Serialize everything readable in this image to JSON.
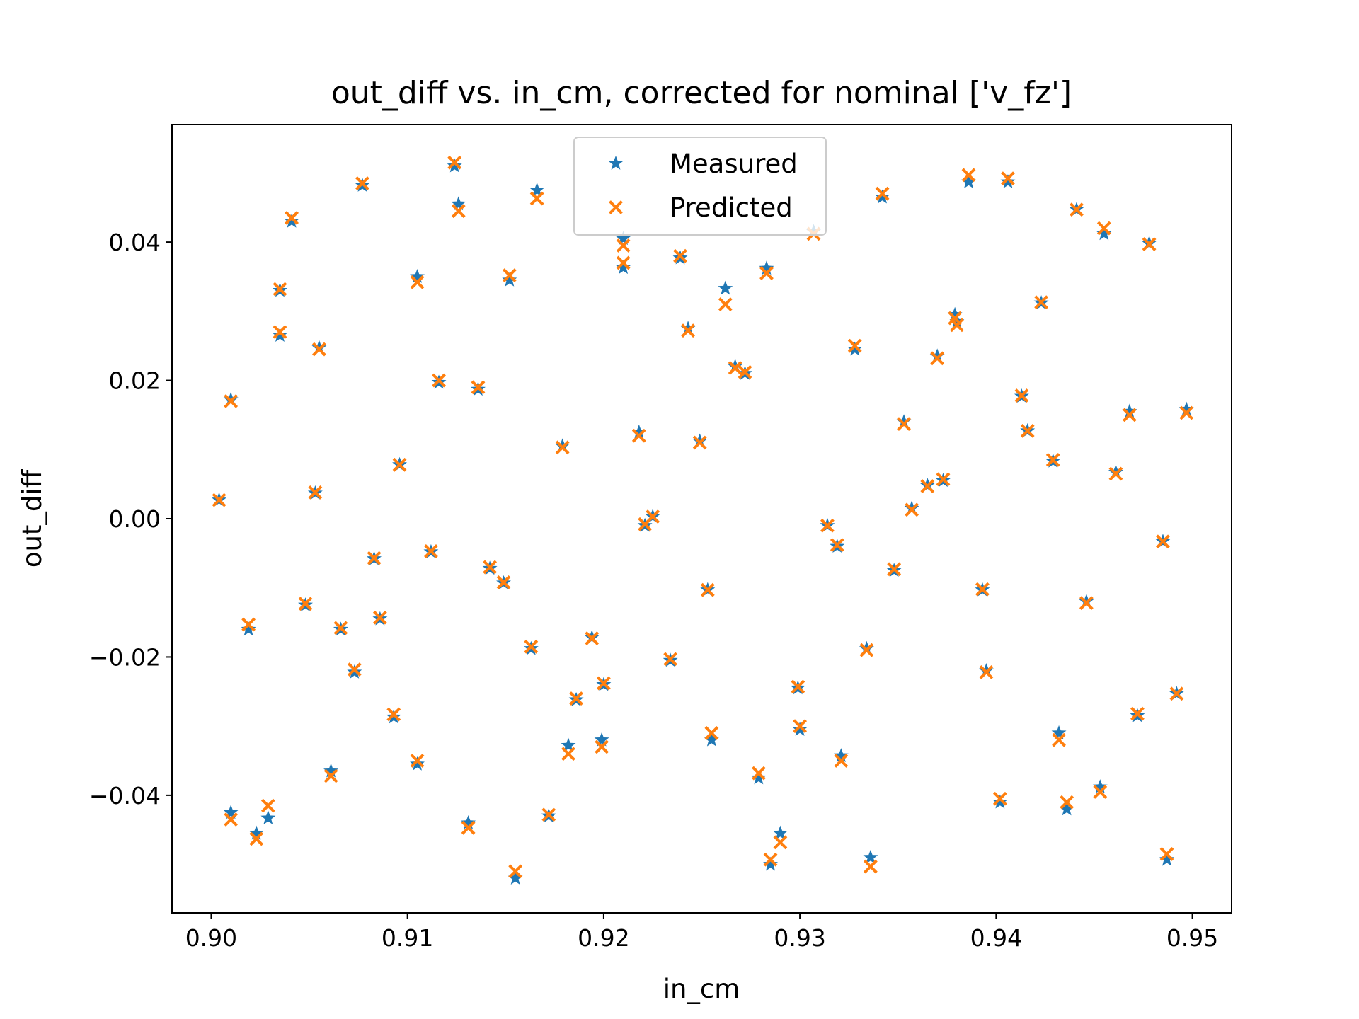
{
  "chart_data": {
    "type": "scatter",
    "title": "out_diff vs. in_cm, corrected for nominal ['v_fz']",
    "xlabel": "in_cm",
    "ylabel": "out_diff",
    "xlim": [
      0.898,
      0.952
    ],
    "ylim": [
      -0.057,
      0.057
    ],
    "xticks": [
      0.9,
      0.91,
      0.92,
      0.93,
      0.94,
      0.95
    ],
    "xtick_labels": [
      "0.90",
      "0.91",
      "0.92",
      "0.93",
      "0.94",
      "0.95"
    ],
    "yticks": [
      -0.04,
      -0.02,
      0.0,
      0.02,
      0.04
    ],
    "ytick_labels": [
      "−0.04",
      "−0.02",
      "0.00",
      "0.02",
      "0.04"
    ],
    "grid": false,
    "legend_position": "top-center",
    "series": [
      {
        "name": "Measured",
        "marker": "star",
        "color": "#1f77b4",
        "points": [
          [
            0.9004,
            0.0027
          ],
          [
            0.901,
            0.0172
          ],
          [
            0.901,
            -0.0425
          ],
          [
            0.9019,
            -0.016
          ],
          [
            0.9023,
            -0.0455
          ],
          [
            0.9029,
            -0.0433
          ],
          [
            0.9035,
            0.033
          ],
          [
            0.9035,
            0.0265
          ],
          [
            0.9041,
            0.043
          ],
          [
            0.9048,
            -0.0125
          ],
          [
            0.9053,
            0.0037
          ],
          [
            0.9055,
            0.0247
          ],
          [
            0.9061,
            -0.0365
          ],
          [
            0.9066,
            -0.016
          ],
          [
            0.9073,
            -0.0222
          ],
          [
            0.9077,
            0.0482
          ],
          [
            0.9083,
            -0.0058
          ],
          [
            0.9086,
            -0.0145
          ],
          [
            0.9093,
            -0.0287
          ],
          [
            0.9096,
            0.0078
          ],
          [
            0.9105,
            0.035
          ],
          [
            0.9105,
            -0.0355
          ],
          [
            0.9112,
            -0.0048
          ],
          [
            0.9116,
            0.0197
          ],
          [
            0.9124,
            0.051
          ],
          [
            0.9126,
            0.0455
          ],
          [
            0.9131,
            -0.044
          ],
          [
            0.9136,
            0.0187
          ],
          [
            0.9142,
            -0.0072
          ],
          [
            0.9149,
            -0.0093
          ],
          [
            0.9152,
            0.0345
          ],
          [
            0.9155,
            -0.052
          ],
          [
            0.9163,
            -0.0188
          ],
          [
            0.9166,
            0.0475
          ],
          [
            0.9172,
            -0.043
          ],
          [
            0.9179,
            0.0105
          ],
          [
            0.9182,
            -0.0328
          ],
          [
            0.9186,
            -0.0262
          ],
          [
            0.9194,
            -0.0172
          ],
          [
            0.9199,
            -0.032
          ],
          [
            0.92,
            -0.024
          ],
          [
            0.921,
            0.0405
          ],
          [
            0.921,
            0.0363
          ],
          [
            0.9218,
            0.0125
          ],
          [
            0.9221,
            -0.001
          ],
          [
            0.9225,
            0.0003
          ],
          [
            0.9234,
            -0.0205
          ],
          [
            0.9239,
            0.0377
          ],
          [
            0.9243,
            0.0275
          ],
          [
            0.9249,
            0.0112
          ],
          [
            0.9253,
            -0.0103
          ],
          [
            0.9255,
            -0.032
          ],
          [
            0.9262,
            0.0333
          ],
          [
            0.9267,
            0.022
          ],
          [
            0.9272,
            0.021
          ],
          [
            0.9279,
            -0.0375
          ],
          [
            0.9283,
            0.0362
          ],
          [
            0.9285,
            -0.05
          ],
          [
            0.929,
            -0.0455
          ],
          [
            0.9299,
            -0.0245
          ],
          [
            0.93,
            -0.0305
          ],
          [
            0.9307,
            0.0415
          ],
          [
            0.9314,
            -0.001
          ],
          [
            0.9319,
            -0.004
          ],
          [
            0.9321,
            -0.0343
          ],
          [
            0.9328,
            0.0245
          ],
          [
            0.9334,
            -0.0188
          ],
          [
            0.9336,
            -0.049
          ],
          [
            0.9342,
            0.0465
          ],
          [
            0.9348,
            -0.0075
          ],
          [
            0.9353,
            0.014
          ],
          [
            0.9357,
            0.0015
          ],
          [
            0.9365,
            0.0048
          ],
          [
            0.937,
            0.0235
          ],
          [
            0.9373,
            0.0055
          ],
          [
            0.9379,
            0.0295
          ],
          [
            0.938,
            0.0285
          ],
          [
            0.9386,
            0.0487
          ],
          [
            0.9393,
            -0.0103
          ],
          [
            0.9395,
            -0.022
          ],
          [
            0.9402,
            -0.041
          ],
          [
            0.9406,
            0.0487
          ],
          [
            0.9413,
            0.0177
          ],
          [
            0.9416,
            0.0127
          ],
          [
            0.9423,
            0.0312
          ],
          [
            0.9429,
            0.0083
          ],
          [
            0.9432,
            -0.031
          ],
          [
            0.9436,
            -0.042
          ],
          [
            0.9441,
            0.0447
          ],
          [
            0.9446,
            -0.012
          ],
          [
            0.9453,
            -0.0388
          ],
          [
            0.9455,
            0.0412
          ],
          [
            0.9461,
            0.0067
          ],
          [
            0.9468,
            0.0155
          ],
          [
            0.9472,
            -0.0285
          ],
          [
            0.9478,
            0.0398
          ],
          [
            0.9485,
            -0.0033
          ],
          [
            0.9487,
            -0.0493
          ],
          [
            0.9492,
            -0.0253
          ],
          [
            0.9497,
            0.0158
          ]
        ]
      },
      {
        "name": "Predicted",
        "marker": "x",
        "color": "#ff7f0e",
        "points": [
          [
            0.9004,
            0.0027
          ],
          [
            0.901,
            0.017
          ],
          [
            0.901,
            -0.0435
          ],
          [
            0.9019,
            -0.0153
          ],
          [
            0.9023,
            -0.0463
          ],
          [
            0.9029,
            -0.0415
          ],
          [
            0.9035,
            0.0332
          ],
          [
            0.9035,
            0.027
          ],
          [
            0.9041,
            0.0435
          ],
          [
            0.9048,
            -0.0123
          ],
          [
            0.9053,
            0.0038
          ],
          [
            0.9055,
            0.0245
          ],
          [
            0.9061,
            -0.0372
          ],
          [
            0.9066,
            -0.0158
          ],
          [
            0.9073,
            -0.0218
          ],
          [
            0.9077,
            0.0485
          ],
          [
            0.9083,
            -0.0057
          ],
          [
            0.9086,
            -0.0143
          ],
          [
            0.9093,
            -0.0283
          ],
          [
            0.9096,
            0.0078
          ],
          [
            0.9105,
            0.0342
          ],
          [
            0.9105,
            -0.035
          ],
          [
            0.9112,
            -0.0047
          ],
          [
            0.9116,
            0.02
          ],
          [
            0.9124,
            0.0515
          ],
          [
            0.9126,
            0.0445
          ],
          [
            0.9131,
            -0.0447
          ],
          [
            0.9136,
            0.019
          ],
          [
            0.9142,
            -0.007
          ],
          [
            0.9149,
            -0.0092
          ],
          [
            0.9152,
            0.0352
          ],
          [
            0.9155,
            -0.051
          ],
          [
            0.9163,
            -0.0185
          ],
          [
            0.9166,
            0.0463
          ],
          [
            0.9172,
            -0.0428
          ],
          [
            0.9179,
            0.0103
          ],
          [
            0.9182,
            -0.034
          ],
          [
            0.9186,
            -0.026
          ],
          [
            0.9194,
            -0.0173
          ],
          [
            0.9199,
            -0.033
          ],
          [
            0.92,
            -0.0238
          ],
          [
            0.921,
            0.0395
          ],
          [
            0.921,
            0.037
          ],
          [
            0.9218,
            0.012
          ],
          [
            0.9221,
            -0.0008
          ],
          [
            0.9225,
            0.0003
          ],
          [
            0.9234,
            -0.0203
          ],
          [
            0.9239,
            0.038
          ],
          [
            0.9243,
            0.0272
          ],
          [
            0.9249,
            0.011
          ],
          [
            0.9253,
            -0.0103
          ],
          [
            0.9255,
            -0.031
          ],
          [
            0.9262,
            0.031
          ],
          [
            0.9267,
            0.0218
          ],
          [
            0.9272,
            0.0212
          ],
          [
            0.9279,
            -0.0368
          ],
          [
            0.9283,
            0.0355
          ],
          [
            0.9285,
            -0.0493
          ],
          [
            0.929,
            -0.0468
          ],
          [
            0.9299,
            -0.0243
          ],
          [
            0.93,
            -0.03
          ],
          [
            0.9307,
            0.0412
          ],
          [
            0.9314,
            -0.001
          ],
          [
            0.9319,
            -0.0038
          ],
          [
            0.9321,
            -0.035
          ],
          [
            0.9328,
            0.025
          ],
          [
            0.9334,
            -0.019
          ],
          [
            0.9336,
            -0.0503
          ],
          [
            0.9342,
            0.047
          ],
          [
            0.9348,
            -0.0073
          ],
          [
            0.9353,
            0.0137
          ],
          [
            0.9357,
            0.0013
          ],
          [
            0.9365,
            0.0047
          ],
          [
            0.937,
            0.0232
          ],
          [
            0.9373,
            0.0057
          ],
          [
            0.9379,
            0.029
          ],
          [
            0.938,
            0.028
          ],
          [
            0.9386,
            0.0497
          ],
          [
            0.9393,
            -0.0102
          ],
          [
            0.9395,
            -0.0222
          ],
          [
            0.9402,
            -0.0405
          ],
          [
            0.9406,
            0.0492
          ],
          [
            0.9413,
            0.0178
          ],
          [
            0.9416,
            0.0127
          ],
          [
            0.9423,
            0.0313
          ],
          [
            0.9429,
            0.0085
          ],
          [
            0.9432,
            -0.032
          ],
          [
            0.9436,
            -0.041
          ],
          [
            0.9441,
            0.0447
          ],
          [
            0.9446,
            -0.0122
          ],
          [
            0.9453,
            -0.0395
          ],
          [
            0.9455,
            0.042
          ],
          [
            0.9461,
            0.0065
          ],
          [
            0.9468,
            0.015
          ],
          [
            0.9472,
            -0.0282
          ],
          [
            0.9478,
            0.0397
          ],
          [
            0.9485,
            -0.0033
          ],
          [
            0.9487,
            -0.0485
          ],
          [
            0.9492,
            -0.0253
          ],
          [
            0.9497,
            0.0153
          ]
        ]
      }
    ]
  }
}
